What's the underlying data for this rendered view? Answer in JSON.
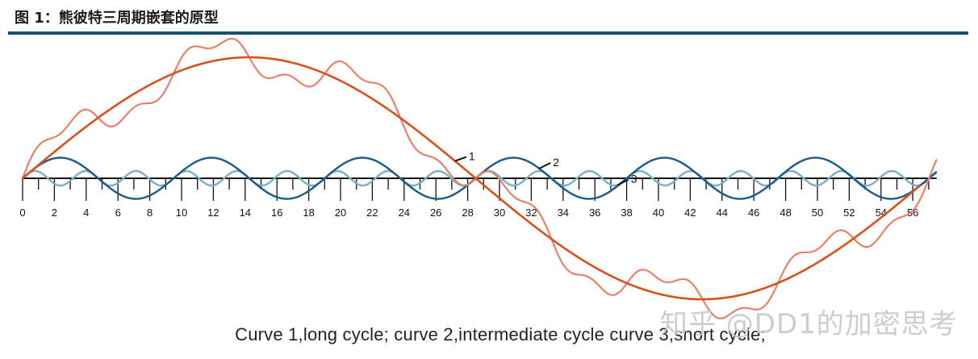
{
  "figure": {
    "title": "图 1：熊彼特三周期嵌套的原型",
    "caption": "Curve 1,long cycle; curve 2,intermediate cycle curve 3,snort cycle;",
    "watermark": "知乎 @DD1的加密思考"
  },
  "colors": {
    "title_rule": "#1f4e6b",
    "long_cycle": "#d8501a",
    "combined": "#e8806a",
    "intermediate": "#1c5a87",
    "short": "#7aaec8",
    "axis": "#111111"
  },
  "chart_data": {
    "type": "line",
    "x_range": [
      0,
      57.5
    ],
    "x_ticks": [
      "0",
      "2",
      "4",
      "6",
      "8",
      "10",
      "12",
      "14",
      "16",
      "18",
      "20",
      "22",
      "24",
      "26",
      "28",
      "30",
      "32",
      "34",
      "36",
      "38",
      "40",
      "42",
      "44",
      "46",
      "48",
      "50",
      "52",
      "54",
      "56"
    ],
    "grid": false,
    "legend": "none",
    "series": [
      {
        "label": "1",
        "role": "long cycle",
        "period": 57,
        "amplitude": 1.0,
        "x_end": 56.5
      },
      {
        "label": "2",
        "role": "intermediate cycle",
        "period": 9.5,
        "amplitude": 0.17
      },
      {
        "label": "3",
        "role": "short cycle",
        "period": 3.17,
        "amplitude": 0.06
      },
      {
        "label": "",
        "role": "sum of curves 1, 2 and 3",
        "combination": [
          1,
          2,
          3
        ]
      }
    ]
  }
}
